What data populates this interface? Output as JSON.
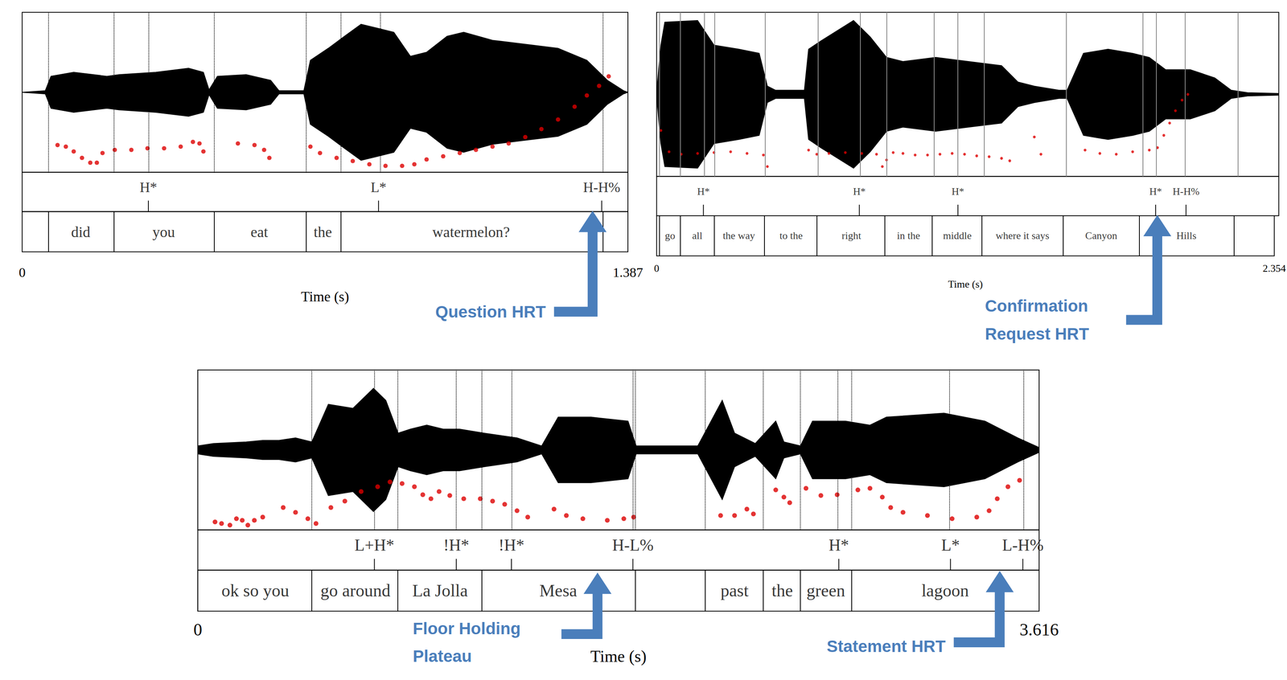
{
  "chart_data": [
    {
      "type": "pitch_track",
      "xlabel": "Time (s)",
      "xlim": [
        0,
        1.387
      ],
      "xticks": [
        0,
        1.387
      ],
      "ylim": [
        0,
        100
      ],
      "waveform_lim": [
        -1,
        1
      ],
      "waveform": {
        "t": [
          0,
          0.053,
          0.066,
          0.118,
          0.194,
          0.222,
          0.306,
          0.381,
          0.415,
          0.428,
          0.447,
          0.513,
          0.569,
          0.588,
          0.645,
          0.66,
          0.701,
          0.738,
          0.776,
          0.814,
          0.851,
          0.889,
          0.926,
          0.973,
          1.011,
          1.077,
          1.152,
          1.227,
          1.293,
          1.34,
          1.377,
          1.387
        ],
        "amplitude": [
          0,
          0.02,
          0.2,
          0.25,
          0.2,
          0.22,
          0.25,
          0.3,
          0.25,
          0.03,
          0.2,
          0.22,
          0.15,
          0.02,
          0.02,
          0.4,
          0.55,
          0.7,
          0.85,
          0.8,
          0.75,
          0.45,
          0.5,
          0.7,
          0.75,
          0.65,
          0.6,
          0.55,
          0.4,
          0.15,
          0.02,
          0
        ]
      },
      "pitch": {
        "x": [
          0.081,
          0.1,
          0.118,
          0.137,
          0.156,
          0.171,
          0.184,
          0.212,
          0.25,
          0.287,
          0.325,
          0.363,
          0.391,
          0.406,
          0.415,
          0.494,
          0.532,
          0.554,
          0.566,
          0.66,
          0.682,
          0.72,
          0.757,
          0.795,
          0.832,
          0.87,
          0.898,
          0.926,
          0.964,
          1.002,
          1.039,
          1.077,
          1.114,
          1.152,
          1.189,
          1.227,
          1.265,
          1.293,
          1.321,
          1.343
        ],
        "values": [
          17,
          16,
          13,
          9,
          6,
          6,
          12,
          14,
          14,
          15,
          15,
          16,
          19,
          18,
          13,
          18,
          17,
          14,
          9,
          16,
          12,
          9,
          7,
          5,
          4,
          4,
          5,
          8,
          10,
          12,
          14,
          16,
          18,
          22,
          27,
          33,
          41,
          48,
          54,
          60
        ],
        "color": "#dd0000",
        "marker": "circle"
      },
      "tones": [
        {
          "time": 0.289,
          "label": "H*"
        },
        {
          "time": 0.816,
          "label": "L*"
        },
        {
          "time": 1.327,
          "label": "H-H%"
        }
      ],
      "words": [
        {
          "start": 0.058,
          "end": 0.21,
          "label": "did"
        },
        {
          "start": 0.21,
          "end": 0.438,
          "label": "you"
        },
        {
          "start": 0.438,
          "end": 0.648,
          "label": "eat"
        },
        {
          "start": 0.648,
          "end": 0.729,
          "label": "the"
        },
        {
          "start": 0.729,
          "end": 1.327,
          "label": "watermelon?"
        }
      ],
      "annotations": [
        {
          "lines": [
            "Question HRT"
          ],
          "color": "#4a7ebb"
        }
      ]
    },
    {
      "type": "pitch_track",
      "xlabel": "Time (s)",
      "xlim": [
        0,
        2.354
      ],
      "xticks": [
        0,
        2.354
      ],
      "ylim": [
        0,
        100
      ],
      "waveform_lim": [
        -1,
        1
      ],
      "waveform": {
        "t": [
          0,
          0.016,
          0.031,
          0.155,
          0.217,
          0.311,
          0.388,
          0.419,
          0.45,
          0.559,
          0.575,
          0.621,
          0.745,
          0.808,
          0.87,
          0.932,
          1.056,
          1.18,
          1.305,
          1.367,
          1.429,
          1.522,
          1.553,
          1.615,
          1.708,
          1.801,
          1.864,
          1.926,
          2.019,
          2.112,
          2.174,
          2.236,
          2.354
        ],
        "amplitude": [
          0.03,
          0.6,
          0.88,
          0.9,
          0.6,
          0.55,
          0.5,
          0.1,
          0.05,
          0.05,
          0.55,
          0.65,
          0.9,
          0.7,
          0.45,
          0.4,
          0.45,
          0.4,
          0.35,
          0.15,
          0.1,
          0.05,
          0.05,
          0.5,
          0.55,
          0.5,
          0.45,
          0.3,
          0.3,
          0.2,
          0.05,
          0.02,
          0.01
        ]
      },
      "pitch": {
        "x": [
          0.016,
          0.047,
          0.093,
          0.155,
          0.217,
          0.28,
          0.342,
          0.404,
          0.419,
          0.575,
          0.606,
          0.652,
          0.714,
          0.776,
          0.832,
          0.854,
          0.87,
          0.895,
          0.932,
          0.978,
          1.025,
          1.072,
          1.118,
          1.165,
          1.211,
          1.258,
          1.305,
          1.336,
          1.429,
          1.454,
          1.621,
          1.677,
          1.739,
          1.801,
          1.864,
          1.895,
          1.919,
          1.941,
          1.963,
          1.988,
          2.01
        ],
        "values": [
          28,
          15,
          13.5,
          14,
          14.5,
          15,
          14,
          13,
          6,
          16,
          13.5,
          14,
          14.5,
          14,
          13.5,
          6,
          10,
          14.5,
          14,
          13,
          13,
          13.5,
          14,
          13.5,
          12.5,
          12,
          11,
          9.5,
          24,
          13.5,
          16,
          14,
          13.5,
          15,
          16,
          17.5,
          25,
          32.5,
          40,
          46.5,
          50
        ],
        "color": "#dd0000",
        "marker": "circle"
      },
      "tones": [
        {
          "time": 0.177,
          "label": "H*"
        },
        {
          "time": 0.767,
          "label": "H*"
        },
        {
          "time": 1.14,
          "label": "H*"
        },
        {
          "time": 1.888,
          "label": "H*"
        },
        {
          "time": 2.003,
          "label": "H-H%"
        }
      ],
      "words": [
        {
          "start": 0.009,
          "end": 0.093,
          "label": "go"
        },
        {
          "start": 0.093,
          "end": 0.217,
          "label": "all"
        },
        {
          "start": 0.217,
          "end": 0.41,
          "label": "the way"
        },
        {
          "start": 0.41,
          "end": 0.615,
          "label": "to the"
        },
        {
          "start": 0.615,
          "end": 0.87,
          "label": "right"
        },
        {
          "start": 0.87,
          "end": 1.05,
          "label": "in the"
        },
        {
          "start": 1.05,
          "end": 1.242,
          "label": "middle"
        },
        {
          "start": 1.242,
          "end": 1.547,
          "label": "where it says"
        },
        {
          "start": 1.547,
          "end": 1.842,
          "label": "Canyon"
        },
        {
          "start": 1.842,
          "end": 2.196,
          "label": "Hills"
        }
      ],
      "annotations": [
        {
          "lines": [
            "Confirmation",
            "Request HRT"
          ],
          "color": "#4a7ebb"
        }
      ]
    },
    {
      "type": "pitch_track",
      "xlabel": "Time (s)",
      "xlim": [
        0,
        3.616
      ],
      "xticks": [
        0,
        3.616
      ],
      "ylim": [
        0,
        100
      ],
      "waveform_lim": [
        -1,
        1
      ],
      "waveform": {
        "t": [
          0,
          0.067,
          0.208,
          0.279,
          0.349,
          0.42,
          0.49,
          0.561,
          0.667,
          0.755,
          0.808,
          0.861,
          0.914,
          0.984,
          1.055,
          1.125,
          1.231,
          1.372,
          1.478,
          1.549,
          1.69,
          1.849,
          1.884,
          2.149,
          2.254,
          2.307,
          2.396,
          2.484,
          2.519,
          2.59,
          2.642,
          2.784,
          2.889,
          2.96,
          3.207,
          3.383,
          3.525,
          3.616
        ],
        "amplitude": [
          0.05,
          0.08,
          0.1,
          0.12,
          0.12,
          0.15,
          0.1,
          0.57,
          0.52,
          0.77,
          0.62,
          0.21,
          0.26,
          0.31,
          0.26,
          0.26,
          0.21,
          0.15,
          0.05,
          0.41,
          0.41,
          0.36,
          0.05,
          0.05,
          0.62,
          0.21,
          0.08,
          0.36,
          0.1,
          0.05,
          0.36,
          0.36,
          0.31,
          0.41,
          0.46,
          0.36,
          0.15,
          0.03
        ]
      },
      "pitch": {
        "x": [
          0.074,
          0.102,
          0.138,
          0.166,
          0.191,
          0.215,
          0.243,
          0.279,
          0.367,
          0.42,
          0.473,
          0.508,
          0.572,
          0.632,
          0.702,
          0.773,
          0.826,
          0.878,
          0.931,
          0.967,
          1.002,
          1.037,
          1.083,
          1.143,
          1.214,
          1.267,
          1.319,
          1.372,
          1.418,
          1.531,
          1.584,
          1.655,
          1.76,
          1.831,
          1.873,
          2.247,
          2.307,
          2.36,
          2.388,
          2.484,
          2.519,
          2.544,
          2.614,
          2.678,
          2.748,
          2.837,
          2.889,
          2.942,
          2.978,
          3.031,
          3.136,
          3.242,
          3.348,
          3.401,
          3.436,
          3.482,
          3.532
        ],
        "values": [
          5,
          4,
          3,
          7,
          6,
          3,
          6,
          8,
          14,
          11,
          7,
          4,
          14,
          18,
          24,
          27,
          30,
          29,
          27,
          22,
          19.5,
          24,
          21.5,
          19.5,
          19.5,
          18,
          16,
          12,
          8,
          13,
          9,
          7,
          6,
          7,
          8,
          9,
          9,
          13,
          10,
          25,
          20.5,
          17,
          26,
          21.5,
          22,
          25,
          26,
          20.5,
          14,
          11,
          9,
          7,
          8,
          12,
          19.5,
          27,
          31
        ],
        "color": "#dd0000",
        "marker": "circle"
      },
      "tones": [
        {
          "time": 0.759,
          "label": "L+H*"
        },
        {
          "time": 1.111,
          "label": "!H*"
        },
        {
          "time": 1.348,
          "label": "!H*"
        },
        {
          "time": 1.87,
          "label": "H-L%"
        },
        {
          "time": 2.755,
          "label": "H*"
        },
        {
          "time": 3.235,
          "label": "L*"
        },
        {
          "time": 3.546,
          "label": "L-H%"
        }
      ],
      "words": [
        {
          "start": 0,
          "end": 0.494,
          "label": "ok so you"
        },
        {
          "start": 0.494,
          "end": 0.861,
          "label": "go around"
        },
        {
          "start": 0.861,
          "end": 1.221,
          "label": "La Jolla"
        },
        {
          "start": 1.221,
          "end": 1.877,
          "label": "Mesa"
        },
        {
          "start": 2.18,
          "end": 2.434,
          "label": "past"
        },
        {
          "start": 2.434,
          "end": 2.59,
          "label": "the"
        },
        {
          "start": 2.59,
          "end": 2.808,
          "label": "green"
        },
        {
          "start": 2.808,
          "end": 3.616,
          "label": "lagoon"
        }
      ],
      "annotations": [
        {
          "lines": [
            "Floor Holding",
            "Plateau"
          ],
          "color": "#4a7ebb"
        },
        {
          "lines": [
            "Statement HRT"
          ],
          "color": "#4a7ebb"
        }
      ]
    }
  ]
}
